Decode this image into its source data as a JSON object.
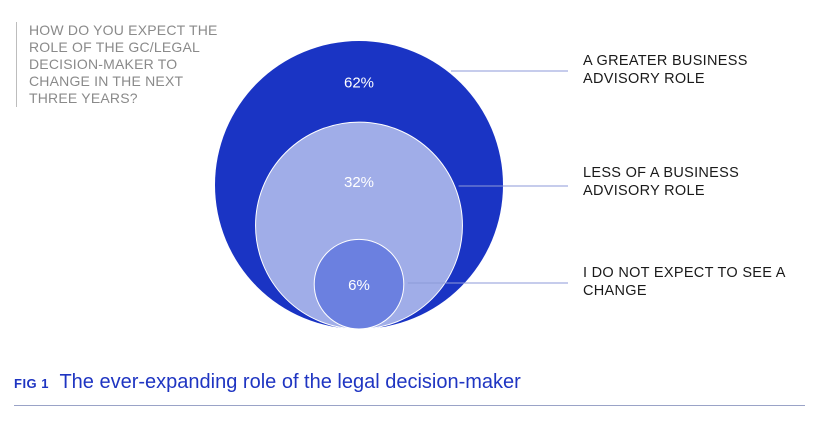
{
  "question": "HOW DO YOU EXPECT THE ROLE OF THE GC/LEGAL DECISION-MAKER TO CHANGE IN THE NEXT THREE YEARS?",
  "caption": {
    "tag": "FIG 1",
    "title": "The ever-expanding role of the legal decision-maker"
  },
  "colors": {
    "outer": "#1a34c4",
    "middle": "#a0ade8",
    "inner": "#6b80e0",
    "leader": "#8d9ad8",
    "caption": "#1f35c2"
  },
  "chart_data": {
    "type": "nested-bubble",
    "title": "HOW DO YOU EXPECT THE ROLE OF THE GC/LEGAL DECISION-MAKER TO CHANGE IN THE NEXT THREE YEARS?",
    "series": [
      {
        "name": "A GREATER BUSINESS ADVISORY ROLE",
        "value": 62,
        "label": "62%"
      },
      {
        "name": "LESS OF A BUSINESS ADVISORY ROLE",
        "value": 32,
        "label": "32%"
      },
      {
        "name": "I DO NOT EXPECT TO SEE A CHANGE",
        "value": 6,
        "label": "6%"
      }
    ]
  }
}
